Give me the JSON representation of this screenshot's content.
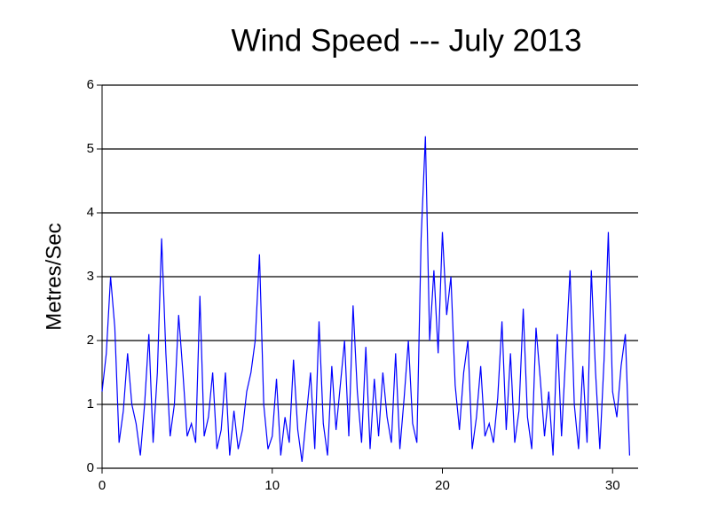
{
  "chart_data": {
    "type": "line",
    "title": "Wind Speed --- July 2013",
    "y_label": "Metres/Sec",
    "x": [
      0,
      0.25,
      0.5,
      0.75,
      1,
      1.25,
      1.5,
      1.75,
      2,
      2.25,
      2.5,
      2.75,
      3,
      3.25,
      3.5,
      3.75,
      4,
      4.25,
      4.5,
      4.75,
      5,
      5.25,
      5.5,
      5.75,
      6,
      6.25,
      6.5,
      6.75,
      7,
      7.25,
      7.5,
      7.75,
      8,
      8.25,
      8.5,
      8.75,
      9,
      9.25,
      9.5,
      9.75,
      10,
      10.25,
      10.5,
      10.75,
      11,
      11.25,
      11.5,
      11.75,
      12,
      12.25,
      12.5,
      12.75,
      13,
      13.25,
      13.5,
      13.75,
      14,
      14.25,
      14.5,
      14.75,
      15,
      15.25,
      15.5,
      15.75,
      16,
      16.25,
      16.5,
      16.75,
      17,
      17.25,
      17.5,
      17.75,
      18,
      18.25,
      18.5,
      18.75,
      19,
      19.25,
      19.5,
      19.75,
      20,
      20.25,
      20.5,
      20.75,
      21,
      21.25,
      21.5,
      21.75,
      22,
      22.25,
      22.5,
      22.75,
      23,
      23.25,
      23.5,
      23.75,
      24,
      24.25,
      24.5,
      24.75,
      25,
      25.25,
      25.5,
      25.75,
      26,
      26.25,
      26.5,
      26.75,
      27,
      27.25,
      27.5,
      27.75,
      28,
      28.25,
      28.5,
      28.75,
      29,
      29.25,
      29.5,
      29.75,
      30,
      30.25,
      30.5,
      30.75,
      31
    ],
    "series": [
      {
        "color": "#0000ff",
        "values": [
          1.2,
          1.8,
          3.0,
          2.2,
          0.4,
          0.9,
          1.8,
          1.0,
          0.7,
          0.2,
          1.0,
          2.1,
          0.4,
          1.5,
          3.6,
          1.8,
          0.5,
          1.0,
          2.4,
          1.5,
          0.5,
          0.7,
          0.4,
          2.7,
          0.5,
          0.8,
          1.5,
          0.3,
          0.6,
          1.5,
          0.2,
          0.9,
          0.3,
          0.6,
          1.2,
          1.5,
          2.0,
          3.35,
          1.0,
          0.3,
          0.5,
          1.4,
          0.2,
          0.8,
          0.4,
          1.7,
          0.6,
          0.1,
          0.8,
          1.5,
          0.3,
          2.3,
          0.7,
          0.2,
          1.6,
          0.6,
          1.3,
          2.0,
          0.5,
          2.55,
          1.2,
          0.4,
          1.9,
          0.3,
          1.4,
          0.5,
          1.5,
          0.8,
          0.4,
          1.8,
          0.3,
          1.1,
          2.0,
          0.7,
          0.4,
          3.6,
          5.2,
          2.0,
          3.1,
          1.8,
          3.7,
          2.4,
          3.0,
          1.3,
          0.6,
          1.5,
          2.0,
          0.3,
          0.8,
          1.6,
          0.5,
          0.7,
          0.4,
          1.1,
          2.3,
          0.6,
          1.8,
          0.4,
          0.9,
          2.5,
          0.8,
          0.3,
          2.2,
          1.4,
          0.5,
          1.2,
          0.2,
          2.1,
          0.5,
          1.8,
          3.1,
          1.0,
          0.3,
          1.6,
          0.4,
          3.1,
          1.5,
          0.3,
          1.7,
          3.7,
          1.2,
          0.8,
          1.6,
          2.1,
          0.2
        ]
      }
    ],
    "xlim": [
      0,
      31.5
    ],
    "ylim": [
      0,
      6
    ],
    "xticks": [
      0,
      10,
      20,
      30
    ],
    "yticks": [
      0,
      1,
      2,
      3,
      4,
      5,
      6
    ],
    "grid": true
  }
}
